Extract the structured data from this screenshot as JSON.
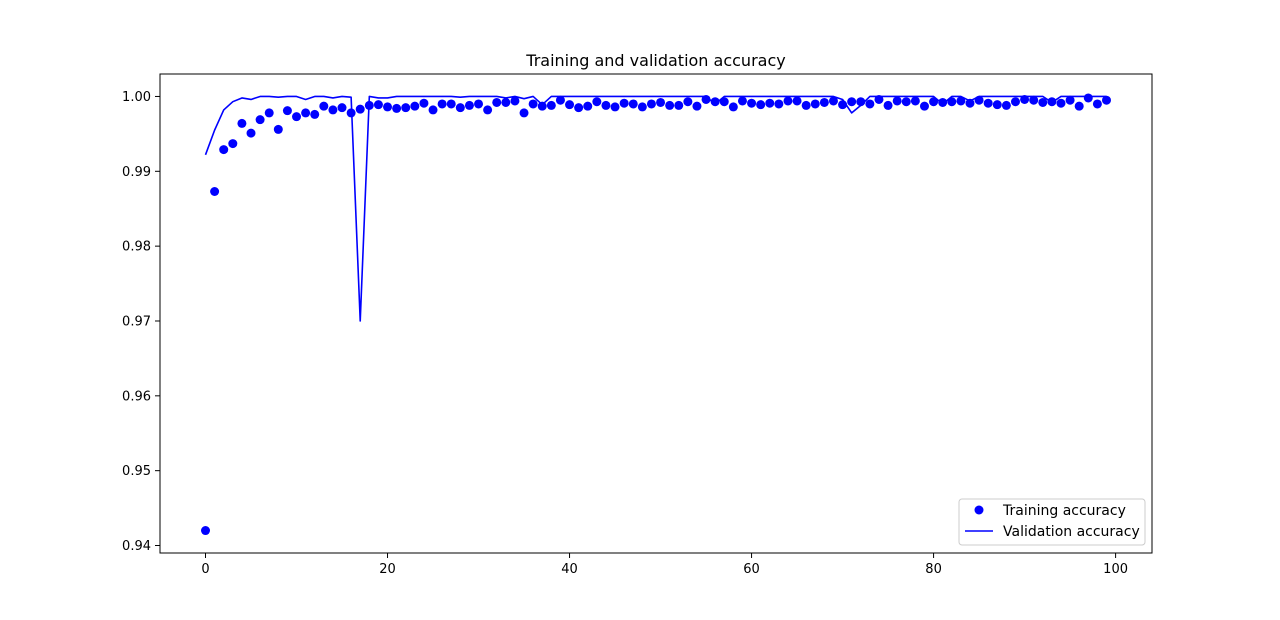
{
  "chart_data": {
    "type": "line",
    "title": "Training and validation accuracy",
    "xlabel": "",
    "ylabel": "",
    "xlim": [
      -5,
      104
    ],
    "ylim": [
      0.939,
      1.003
    ],
    "x_ticks": [
      0,
      20,
      40,
      60,
      80,
      100
    ],
    "x_tick_labels": [
      "0",
      "20",
      "40",
      "60",
      "80",
      "100"
    ],
    "y_ticks": [
      0.94,
      0.95,
      0.96,
      0.97,
      0.98,
      0.99,
      1.0
    ],
    "y_tick_labels": [
      "0.94",
      "0.95",
      "0.96",
      "0.97",
      "0.98",
      "0.99",
      "1.00"
    ],
    "grid": false,
    "legend_position": "bottom-right",
    "colors": {
      "series": "#0000ff",
      "axes": "#000000"
    },
    "series": [
      {
        "name": "Training accuracy",
        "style": "points",
        "x": [
          0,
          1,
          2,
          3,
          4,
          5,
          6,
          7,
          8,
          9,
          10,
          11,
          12,
          13,
          14,
          15,
          16,
          17,
          18,
          19,
          20,
          21,
          22,
          23,
          24,
          25,
          26,
          27,
          28,
          29,
          30,
          31,
          32,
          33,
          34,
          35,
          36,
          37,
          38,
          39,
          40,
          41,
          42,
          43,
          44,
          45,
          46,
          47,
          48,
          49,
          50,
          51,
          52,
          53,
          54,
          55,
          56,
          57,
          58,
          59,
          60,
          61,
          62,
          63,
          64,
          65,
          66,
          67,
          68,
          69,
          70,
          71,
          72,
          73,
          74,
          75,
          76,
          77,
          78,
          79,
          80,
          81,
          82,
          83,
          84,
          85,
          86,
          87,
          88,
          89,
          90,
          91,
          92,
          93,
          94,
          95,
          96,
          97,
          98,
          99
        ],
        "values": [
          0.942,
          0.9873,
          0.9929,
          0.9937,
          0.9964,
          0.9951,
          0.9969,
          0.9978,
          0.9956,
          0.9981,
          0.9973,
          0.9978,
          0.9976,
          0.9987,
          0.9982,
          0.9985,
          0.9978,
          0.9983,
          0.9988,
          0.9989,
          0.9986,
          0.9984,
          0.9985,
          0.9987,
          0.9991,
          0.9982,
          0.999,
          0.999,
          0.9985,
          0.9988,
          0.999,
          0.9982,
          0.9992,
          0.9992,
          0.9994,
          0.9978,
          0.999,
          0.9987,
          0.9988,
          0.9995,
          0.9989,
          0.9985,
          0.9987,
          0.9993,
          0.9988,
          0.9986,
          0.9991,
          0.999,
          0.9986,
          0.999,
          0.9992,
          0.9988,
          0.9988,
          0.9993,
          0.9987,
          0.9996,
          0.9993,
          0.9993,
          0.9986,
          0.9994,
          0.9991,
          0.9989,
          0.9991,
          0.999,
          0.9994,
          0.9994,
          0.9988,
          0.999,
          0.9992,
          0.9994,
          0.9989,
          0.9993,
          0.9993,
          0.999,
          0.9996,
          0.9988,
          0.9994,
          0.9993,
          0.9994,
          0.9987,
          0.9993,
          0.9992,
          0.9993,
          0.9994,
          0.9991,
          0.9995,
          0.9991,
          0.9989,
          0.9988,
          0.9993,
          0.9996,
          0.9995,
          0.9992,
          0.9993,
          0.9991,
          0.9995,
          0.9987,
          0.9998,
          0.999,
          0.9995
        ]
      },
      {
        "name": "Validation accuracy",
        "style": "line",
        "x": [
          0,
          1,
          2,
          3,
          4,
          5,
          6,
          7,
          8,
          9,
          10,
          11,
          12,
          13,
          14,
          15,
          16,
          17,
          18,
          19,
          20,
          21,
          22,
          23,
          24,
          25,
          26,
          27,
          28,
          29,
          30,
          31,
          32,
          33,
          34,
          35,
          36,
          37,
          38,
          39,
          40,
          41,
          42,
          43,
          44,
          45,
          46,
          47,
          48,
          49,
          50,
          51,
          52,
          53,
          54,
          55,
          56,
          57,
          58,
          59,
          60,
          61,
          62,
          63,
          64,
          65,
          66,
          67,
          68,
          69,
          70,
          71,
          72,
          73,
          74,
          75,
          76,
          77,
          78,
          79,
          80,
          81,
          82,
          83,
          84,
          85,
          86,
          87,
          88,
          89,
          90,
          91,
          92,
          93,
          94,
          95,
          96,
          97,
          98,
          99
        ],
        "values": [
          0.9922,
          0.9955,
          0.9982,
          0.9993,
          0.9998,
          0.9996,
          1.0,
          1.0,
          0.9999,
          1.0,
          1.0,
          0.9996,
          1.0,
          1.0,
          0.9998,
          1.0,
          0.9999,
          0.97,
          1.0,
          0.9998,
          0.9998,
          1.0,
          1.0,
          1.0,
          1.0,
          1.0,
          1.0,
          1.0,
          0.9999,
          1.0,
          1.0,
          1.0,
          1.0,
          0.9998,
          1.0,
          0.9997,
          1.0,
          0.9989,
          1.0,
          1.0,
          1.0,
          1.0,
          1.0,
          1.0,
          1.0,
          1.0,
          1.0,
          1.0,
          1.0,
          1.0,
          1.0,
          1.0,
          1.0,
          1.0,
          1.0,
          1.0,
          0.999,
          1.0,
          1.0,
          1.0,
          1.0,
          1.0,
          1.0,
          1.0,
          1.0,
          1.0,
          1.0,
          1.0,
          1.0,
          1.0,
          0.9996,
          0.9978,
          0.9988,
          1.0,
          1.0,
          1.0,
          1.0,
          1.0,
          1.0,
          1.0,
          1.0,
          0.999,
          1.0,
          1.0,
          0.9994,
          1.0,
          1.0,
          1.0,
          1.0,
          1.0,
          1.0,
          1.0,
          1.0,
          0.9992,
          1.0,
          1.0,
          1.0,
          1.0,
          1.0,
          1.0
        ]
      }
    ]
  }
}
